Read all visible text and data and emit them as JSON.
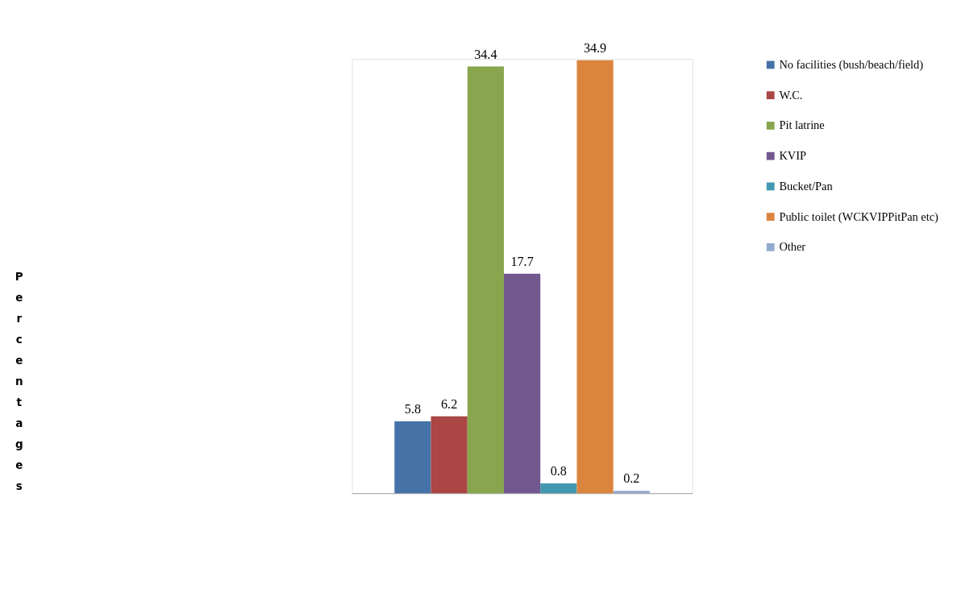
{
  "chart_data": {
    "type": "bar",
    "ylabel": "Percentages",
    "categories": [
      null
    ],
    "series": [
      {
        "name": "No facilities (bush/beach/field)",
        "color": "#4572a7",
        "values": [
          5.8
        ]
      },
      {
        "name": "W.C.",
        "color": "#aa4643",
        "values": [
          6.2
        ]
      },
      {
        "name": "Pit latrine",
        "color": "#89a54e",
        "values": [
          34.4
        ]
      },
      {
        "name": "KVIP",
        "color": "#71588f",
        "values": [
          17.7
        ]
      },
      {
        "name": "Bucket/Pan",
        "color": "#4198af",
        "values": [
          0.8
        ]
      },
      {
        "name": "Public toilet (WCKVIPPitPan etc)",
        "color": "#db843d",
        "values": [
          34.9
        ]
      },
      {
        "name": "Other",
        "color": "#93a9cf",
        "values": [
          0.2
        ]
      }
    ],
    "data_labels": true,
    "legend": "right",
    "grid": false,
    "tick_labels": false
  }
}
